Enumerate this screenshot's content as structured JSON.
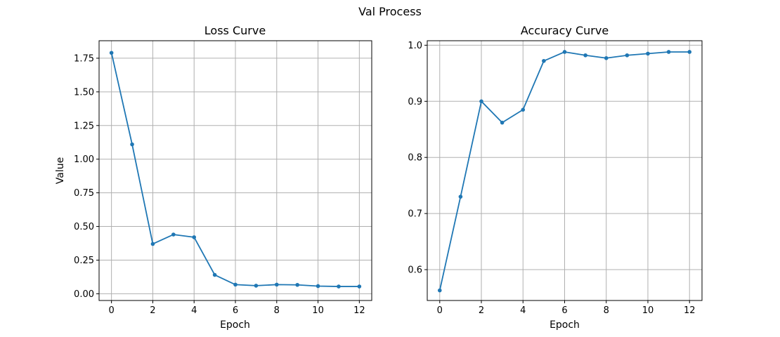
{
  "figure": {
    "suptitle": "Val Process"
  },
  "colors": {
    "line": "#1f77b4",
    "grid": "#b0b0b0",
    "axes": "#000000"
  },
  "chart_data": [
    {
      "type": "line",
      "title": "Loss Curve",
      "xlabel": "Epoch",
      "ylabel": "Value",
      "grid": true,
      "marker": "dot",
      "xlim": [
        -0.6,
        12.6
      ],
      "ylim": [
        -0.05,
        1.88
      ],
      "xticks": [
        0,
        2,
        4,
        6,
        8,
        10,
        12
      ],
      "yticks": [
        0.0,
        0.25,
        0.5,
        0.75,
        1.0,
        1.25,
        1.5,
        1.75
      ],
      "ytick_labels": [
        "0.00",
        "0.25",
        "0.50",
        "0.75",
        "1.00",
        "1.25",
        "1.50",
        "1.75"
      ],
      "xtick_labels": [
        "0",
        "2",
        "4",
        "6",
        "8",
        "10",
        "12"
      ],
      "series": [
        {
          "x": [
            0,
            1,
            2,
            3,
            4,
            5,
            6,
            7,
            8,
            9,
            10,
            11,
            12
          ],
          "values": [
            1.79,
            1.11,
            0.37,
            0.44,
            0.42,
            0.14,
            0.068,
            0.06,
            0.068,
            0.066,
            0.057,
            0.054,
            0.054
          ]
        }
      ]
    },
    {
      "type": "line",
      "title": "Accuracy Curve",
      "xlabel": "Epoch",
      "ylabel": "",
      "grid": true,
      "marker": "dot",
      "xlim": [
        -0.6,
        12.6
      ],
      "ylim": [
        0.545,
        1.008
      ],
      "xticks": [
        0,
        2,
        4,
        6,
        8,
        10,
        12
      ],
      "yticks": [
        0.6,
        0.7,
        0.8,
        0.9,
        1.0
      ],
      "ytick_labels": [
        "0.6",
        "0.7",
        "0.8",
        "0.9",
        "1.0"
      ],
      "xtick_labels": [
        "0",
        "2",
        "4",
        "6",
        "8",
        "10",
        "12"
      ],
      "series": [
        {
          "x": [
            0,
            1,
            2,
            3,
            4,
            5,
            6,
            7,
            8,
            9,
            10,
            11,
            12
          ],
          "values": [
            0.563,
            0.73,
            0.9,
            0.862,
            0.885,
            0.972,
            0.988,
            0.982,
            0.977,
            0.982,
            0.985,
            0.988,
            0.988
          ]
        }
      ]
    }
  ]
}
